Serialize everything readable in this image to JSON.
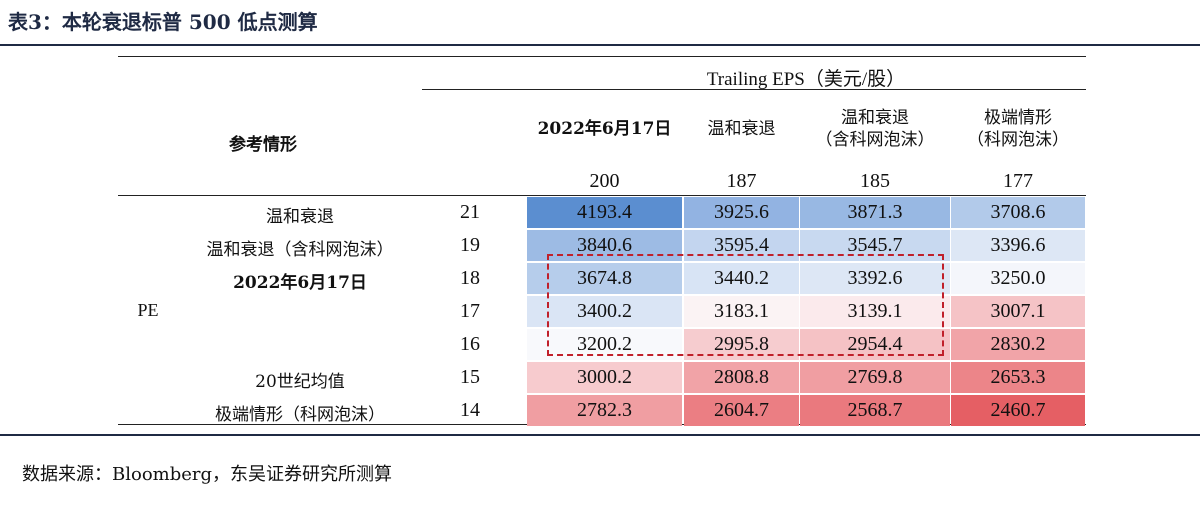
{
  "title": "表3：本轮衰退标普 500 低点测算",
  "header": {
    "group_label": "Trailing EPS（美元/股）",
    "scenario_label": "参考情形",
    "columns": [
      {
        "line1": "2022年6月17日",
        "line2": "",
        "eps": "200"
      },
      {
        "line1": "温和衰退",
        "line2": "",
        "eps": "187"
      },
      {
        "line1": "温和衰退",
        "line2": "（含科网泡沫）",
        "eps": "185"
      },
      {
        "line1": "极端情形",
        "line2": "（科网泡沫）",
        "eps": "177"
      }
    ]
  },
  "pe_label": "PE",
  "rows": [
    {
      "scenario": "温和衰退",
      "pe": "21",
      "values": [
        "4193.4",
        "3925.6",
        "3871.3",
        "3708.6"
      ],
      "colors": [
        "#5b8ed0",
        "#92b3e2",
        "#98b8e3",
        "#b2caea"
      ]
    },
    {
      "scenario": "温和衰退（含科网泡沫）",
      "pe": "19",
      "values": [
        "3840.6",
        "3595.4",
        "3545.7",
        "3396.6"
      ],
      "colors": [
        "#9dbbe4",
        "#c3d5ef",
        "#c8d9f0",
        "#dde7f5"
      ]
    },
    {
      "scenario": "2022年6月17日",
      "pe": "18",
      "values": [
        "3674.8",
        "3440.2",
        "3392.6",
        "3250.0"
      ],
      "colors": [
        "#b6cdeb",
        "#d8e4f5",
        "#dde7f5",
        "#f4f6fb"
      ]
    },
    {
      "scenario": "",
      "pe": "17",
      "values": [
        "3400.2",
        "3183.1",
        "3139.1",
        "3007.1"
      ],
      "colors": [
        "#dae5f5",
        "#fbf3f4",
        "#fbeaec",
        "#f5c3c6"
      ]
    },
    {
      "scenario": "",
      "pe": "16",
      "values": [
        "3200.2",
        "2995.8",
        "2954.4",
        "2830.2"
      ],
      "colors": [
        "#f8f9fc",
        "#f6cccf",
        "#f5c2c5",
        "#f1a4a8"
      ]
    },
    {
      "scenario": "20世纪均值",
      "pe": "15",
      "values": [
        "3000.2",
        "2808.8",
        "2769.8",
        "2653.3"
      ],
      "colors": [
        "#f7cbce",
        "#f1a3a7",
        "#f09ea2",
        "#ec8589"
      ]
    },
    {
      "scenario": "极端情形（科网泡沫）",
      "pe": "14",
      "values": [
        "2782.3",
        "2604.7",
        "2568.7",
        "2460.7"
      ],
      "colors": [
        "#f09ea2",
        "#eb7e83",
        "#ea797e",
        "#e55f64"
      ]
    }
  ],
  "source": "数据来源：Bloomberg，东吴证券研究所测算"
}
